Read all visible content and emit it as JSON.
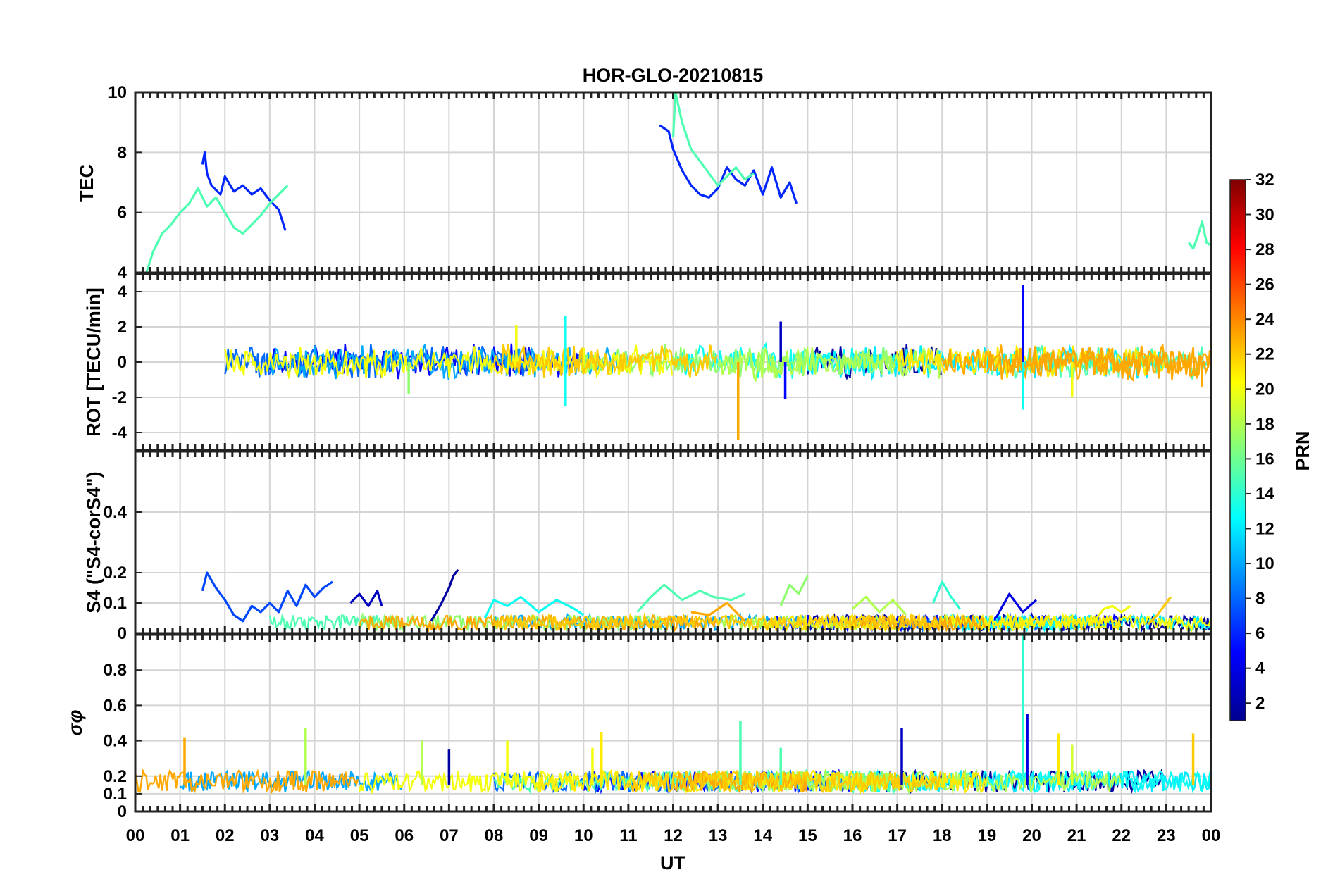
{
  "chart_data": {
    "type": "line",
    "title": "HOR-GLO-20210815",
    "xlabel": "UT",
    "x_tick_labels": [
      "00",
      "01",
      "02",
      "03",
      "04",
      "05",
      "06",
      "07",
      "08",
      "09",
      "10",
      "11",
      "12",
      "13",
      "14",
      "15",
      "16",
      "17",
      "18",
      "19",
      "20",
      "21",
      "22",
      "23",
      "00"
    ],
    "xlim": [
      0,
      24
    ],
    "grid": true,
    "colorbar": {
      "label": "PRN",
      "range": [
        1,
        32
      ],
      "ticks": [
        "2",
        "4",
        "6",
        "8",
        "10",
        "12",
        "14",
        "16",
        "18",
        "20",
        "22",
        "24",
        "26",
        "28",
        "30",
        "32"
      ],
      "colormap": "jet"
    },
    "panels": [
      {
        "id": "tec",
        "ylabel": "TEC",
        "ylim": [
          4,
          10
        ],
        "y_ticks": [
          4,
          6,
          8,
          10
        ],
        "series": [
          {
            "prn": 6,
            "x": [
              1.5,
              1.55,
              1.6,
              1.7,
              1.9,
              2.0,
              2.2,
              2.4,
              2.6,
              2.8,
              3.0,
              3.2,
              3.35
            ],
            "y": [
              7.6,
              8.0,
              7.3,
              6.9,
              6.6,
              7.2,
              6.7,
              6.9,
              6.6,
              6.8,
              6.4,
              6.1,
              5.4
            ]
          },
          {
            "prn": 15,
            "x": [
              0.25,
              0.4,
              0.6,
              0.8,
              1.0,
              1.2,
              1.4,
              1.6,
              1.8,
              2.0,
              2.2,
              2.4,
              2.6,
              2.8,
              3.0,
              3.2,
              3.4
            ],
            "y": [
              4.0,
              4.7,
              5.3,
              5.6,
              6.0,
              6.3,
              6.8,
              6.2,
              6.5,
              6.0,
              5.5,
              5.3,
              5.6,
              5.9,
              6.3,
              6.6,
              6.9
            ]
          },
          {
            "prn": 6,
            "x": [
              11.7,
              11.9,
              12.0,
              12.2,
              12.4,
              12.6,
              12.8,
              13.0,
              13.2,
              13.4,
              13.6,
              13.8,
              14.0,
              14.2,
              14.4,
              14.6,
              14.75
            ],
            "y": [
              8.9,
              8.7,
              8.1,
              7.4,
              6.9,
              6.6,
              6.5,
              6.8,
              7.5,
              7.1,
              6.9,
              7.4,
              6.6,
              7.5,
              6.5,
              7.0,
              6.3
            ]
          },
          {
            "prn": 15,
            "x": [
              12.0,
              12.05,
              12.2,
              12.4,
              12.6,
              12.8,
              13.0,
              13.2,
              13.4,
              13.6,
              13.8
            ],
            "y": [
              8.5,
              10.0,
              9.0,
              8.1,
              7.7,
              7.3,
              6.9,
              7.2,
              7.5,
              7.1,
              7.3
            ]
          },
          {
            "prn": 15,
            "x": [
              23.5,
              23.6,
              23.7,
              23.8,
              23.9,
              24.0
            ],
            "y": [
              5.0,
              4.8,
              5.2,
              5.7,
              5.0,
              4.9
            ]
          }
        ]
      },
      {
        "id": "rot",
        "ylabel": "ROT [TECU/min]",
        "ylim": [
          -5,
          5
        ],
        "y_ticks": [
          -4,
          -2,
          0,
          2,
          4
        ],
        "spikes": [
          {
            "prn": 23,
            "x": 13.45,
            "y": -4.4
          },
          {
            "prn": 5,
            "x": 19.8,
            "y": 4.4
          },
          {
            "prn": 13,
            "x": 19.8,
            "y": -2.7
          },
          {
            "prn": 13,
            "x": 9.6,
            "y": 2.6
          },
          {
            "prn": 13,
            "x": 9.6,
            "y": -2.5
          },
          {
            "prn": 3,
            "x": 14.4,
            "y": 2.3
          },
          {
            "prn": 5,
            "x": 14.5,
            "y": -2.1
          },
          {
            "prn": 20,
            "x": 8.5,
            "y": 2.1
          },
          {
            "prn": 20,
            "x": 20.9,
            "y": -2.0
          },
          {
            "prn": 17,
            "x": 6.1,
            "y": -1.8
          },
          {
            "prn": 23,
            "x": 23.8,
            "y": -1.4
          }
        ]
      },
      {
        "id": "s4",
        "ylabel": "S4 (\"S4-corS4\")",
        "ylim": [
          0,
          0.6
        ],
        "y_ticks": [
          0,
          0.1,
          0.2,
          0.4
        ],
        "series": [
          {
            "prn": 7,
            "x": [
              1.5,
              1.6,
              1.8,
              2.0,
              2.2,
              2.4,
              2.6,
              2.8,
              3.0,
              3.2,
              3.4,
              3.6,
              3.8,
              4.0,
              4.2,
              4.4
            ],
            "y": [
              0.14,
              0.2,
              0.15,
              0.11,
              0.06,
              0.04,
              0.09,
              0.07,
              0.1,
              0.07,
              0.14,
              0.09,
              0.16,
              0.12,
              0.15,
              0.17
            ]
          },
          {
            "prn": 3,
            "x": [
              4.8,
              5.0,
              5.2,
              5.4,
              5.5
            ],
            "y": [
              0.1,
              0.13,
              0.09,
              0.14,
              0.09
            ]
          },
          {
            "prn": 2,
            "x": [
              6.6,
              6.8,
              7.0,
              7.1,
              7.2
            ],
            "y": [
              0.04,
              0.09,
              0.15,
              0.19,
              0.21
            ]
          },
          {
            "prn": 13,
            "x": [
              7.8,
              8.0,
              8.3,
              8.6,
              9.0,
              9.4,
              9.8,
              10.0
            ],
            "y": [
              0.05,
              0.11,
              0.09,
              0.12,
              0.07,
              0.11,
              0.08,
              0.06
            ]
          },
          {
            "prn": 15,
            "x": [
              11.2,
              11.5,
              11.8,
              12.2,
              12.6,
              12.9,
              13.3,
              13.6
            ],
            "y": [
              0.07,
              0.12,
              0.16,
              0.11,
              0.14,
              0.12,
              0.11,
              0.13
            ]
          },
          {
            "prn": 17,
            "x": [
              14.4,
              14.6,
              14.8,
              15.0
            ],
            "y": [
              0.09,
              0.16,
              0.13,
              0.19
            ]
          },
          {
            "prn": 18,
            "x": [
              16.0,
              16.3,
              16.6,
              16.9,
              17.2
            ],
            "y": [
              0.08,
              0.12,
              0.07,
              0.11,
              0.06
            ]
          },
          {
            "prn": 14,
            "x": [
              17.8,
              18.0,
              18.2,
              18.4
            ],
            "y": [
              0.1,
              0.17,
              0.12,
              0.08
            ]
          },
          {
            "prn": 4,
            "x": [
              19.2,
              19.5,
              19.8,
              20.1
            ],
            "y": [
              0.05,
              0.13,
              0.07,
              0.11
            ]
          },
          {
            "prn": 20,
            "x": [
              21.4,
              21.6,
              21.8,
              22.0,
              22.2
            ],
            "y": [
              0.04,
              0.08,
              0.09,
              0.07,
              0.09
            ]
          },
          {
            "prn": 22,
            "x": [
              22.6,
              22.8,
              23.0,
              23.1
            ],
            "y": [
              0.03,
              0.06,
              0.1,
              0.12
            ]
          },
          {
            "prn": 23,
            "x": [
              12.4,
              12.8,
              13.2,
              13.6
            ],
            "y": [
              0.07,
              0.06,
              0.1,
              0.04
            ]
          }
        ]
      },
      {
        "id": "sigma",
        "ylabel": "σφ",
        "ylim": [
          0,
          1
        ],
        "y_ticks": [
          0,
          0.1,
          0.2,
          0.4,
          0.6,
          0.8
        ],
        "spikes": [
          {
            "prn": 14,
            "x": 19.8,
            "y": 1.0
          },
          {
            "prn": 4,
            "x": 19.9,
            "y": 0.55
          },
          {
            "prn": 15,
            "x": 13.5,
            "y": 0.51
          },
          {
            "prn": 3,
            "x": 17.1,
            "y": 0.47
          },
          {
            "prn": 18,
            "x": 3.8,
            "y": 0.47
          },
          {
            "prn": 21,
            "x": 10.4,
            "y": 0.45
          },
          {
            "prn": 21,
            "x": 20.6,
            "y": 0.44
          },
          {
            "prn": 22,
            "x": 23.6,
            "y": 0.44
          },
          {
            "prn": 23,
            "x": 1.1,
            "y": 0.42
          },
          {
            "prn": 18,
            "x": 6.4,
            "y": 0.4
          },
          {
            "prn": 20,
            "x": 8.3,
            "y": 0.4
          },
          {
            "prn": 15,
            "x": 14.4,
            "y": 0.36
          },
          {
            "prn": 2,
            "x": 7.0,
            "y": 0.35
          },
          {
            "prn": 19,
            "x": 20.9,
            "y": 0.38
          },
          {
            "prn": 20,
            "x": 10.2,
            "y": 0.36
          }
        ]
      }
    ]
  }
}
